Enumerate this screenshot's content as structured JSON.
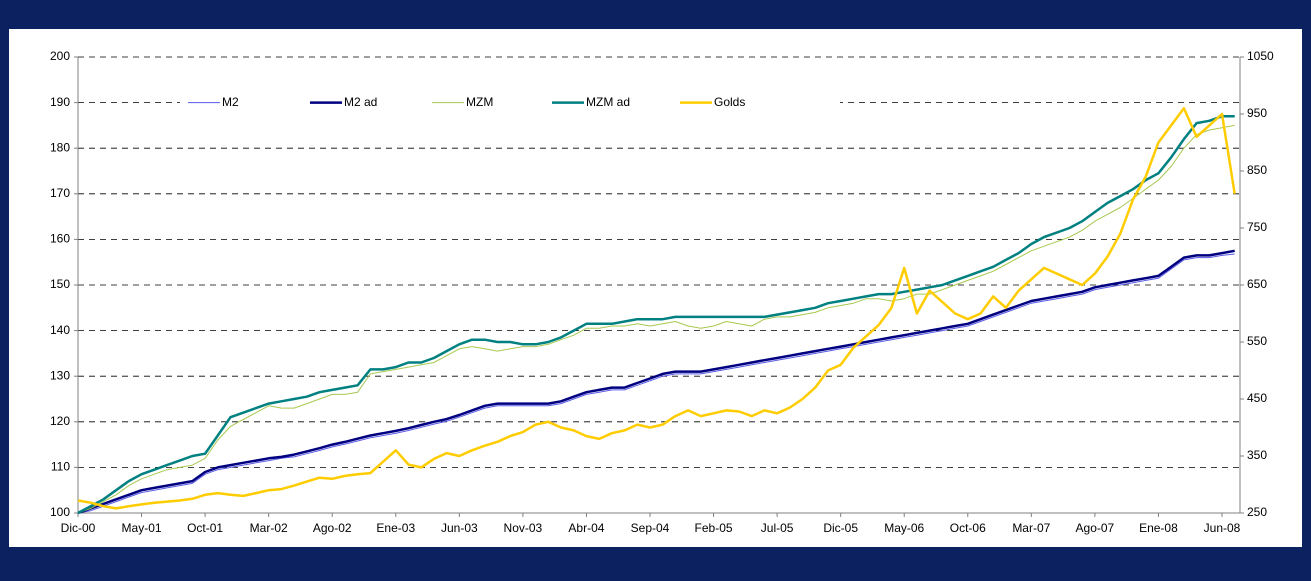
{
  "chart_data": {
    "type": "line",
    "categories": [
      "Dic-00",
      null,
      null,
      null,
      null,
      "May-01",
      null,
      null,
      null,
      null,
      "Oct-01",
      null,
      null,
      null,
      null,
      "Mar-02",
      null,
      null,
      null,
      null,
      "Ago-02",
      null,
      null,
      null,
      null,
      "Ene-03",
      null,
      null,
      null,
      null,
      "Jun-03",
      null,
      null,
      null,
      null,
      "Nov-03",
      null,
      null,
      null,
      null,
      "Abr-04",
      null,
      null,
      null,
      null,
      "Sep-04",
      null,
      null,
      null,
      null,
      "Feb-05",
      null,
      null,
      null,
      null,
      "Jul-05",
      null,
      null,
      null,
      null,
      "Dic-05",
      null,
      null,
      null,
      null,
      "May-06",
      null,
      null,
      null,
      null,
      "Oct-06",
      null,
      null,
      null,
      null,
      "Mar-07",
      null,
      null,
      null,
      null,
      "Ago-07",
      null,
      null,
      null,
      null,
      "Ene-08",
      null,
      null,
      null,
      null,
      "Jun-08",
      null
    ],
    "ylim": [
      100,
      200
    ],
    "yticks": [
      100,
      110,
      120,
      130,
      140,
      150,
      160,
      170,
      180,
      190,
      200
    ],
    "y2lim": [
      250,
      1050
    ],
    "y2ticks": [
      250,
      350,
      450,
      550,
      650,
      750,
      850,
      950,
      1050
    ],
    "grid": true,
    "legend": "top",
    "series": [
      {
        "name": "M2",
        "color": "#5a5ae6",
        "linewidth": 1,
        "values": [
          100,
          100.5,
          101.5,
          102.5,
          103.5,
          104.5,
          105,
          105.5,
          106,
          106.5,
          108.5,
          109.5,
          110,
          110.5,
          111,
          111.5,
          112,
          112.3,
          113,
          113.7,
          114.5,
          115.1,
          115.8,
          116.5,
          117,
          117.5,
          118.1,
          118.8,
          119.5,
          120.1,
          121,
          122,
          123,
          123.5,
          123.5,
          123.5,
          123.5,
          123.5,
          124,
          125,
          126,
          126.5,
          127,
          127,
          128,
          129,
          130,
          130.5,
          130.5,
          130.5,
          131,
          131.5,
          132,
          132.5,
          133,
          133.5,
          134,
          134.5,
          135,
          135.5,
          136,
          136.5,
          137,
          137.5,
          138,
          138.5,
          139,
          139.5,
          140,
          140.5,
          141,
          142,
          143,
          144,
          145,
          146,
          146.5,
          147,
          147.5,
          148,
          149,
          149.5,
          150,
          150.5,
          151,
          151.5,
          153.5,
          155.5,
          156,
          156,
          156.5,
          156.8
        ]
      },
      {
        "name": "M2 ad",
        "color": "#000080",
        "linewidth": 2.5,
        "values": [
          100,
          101,
          102,
          103,
          104,
          105,
          105.5,
          106,
          106.5,
          107,
          109,
          110,
          110.5,
          111,
          111.5,
          112,
          112.3,
          112.8,
          113.5,
          114.2,
          115,
          115.6,
          116.3,
          117,
          117.5,
          118,
          118.6,
          119.3,
          120,
          120.6,
          121.5,
          122.5,
          123.5,
          124,
          124,
          124,
          124,
          124,
          124.5,
          125.5,
          126.5,
          127,
          127.5,
          127.5,
          128.5,
          129.5,
          130.5,
          131,
          131,
          131,
          131.5,
          132,
          132.5,
          133,
          133.5,
          134,
          134.5,
          135,
          135.5,
          136,
          136.5,
          137,
          137.5,
          138,
          138.5,
          139,
          139.5,
          140,
          140.5,
          141,
          141.5,
          142.5,
          143.5,
          144.5,
          145.5,
          146.5,
          147,
          147.5,
          148,
          148.5,
          149.5,
          150,
          150.5,
          151,
          151.5,
          152,
          154,
          156,
          156.5,
          156.5,
          157,
          157.5
        ]
      },
      {
        "name": "MZM",
        "color": "#a8c850",
        "linewidth": 1,
        "values": [
          100,
          101,
          102.5,
          104,
          106,
          107.5,
          108.5,
          109.5,
          110,
          110.5,
          112,
          116,
          119,
          120.5,
          122,
          123.5,
          123,
          123,
          124,
          125,
          126,
          126,
          126.5,
          130.5,
          131,
          131.5,
          132,
          132.5,
          133,
          134.5,
          136,
          136.5,
          136,
          135.5,
          136,
          136.5,
          136.5,
          137,
          138,
          139,
          140.5,
          140.5,
          141,
          141,
          141.5,
          141,
          141.5,
          142,
          141,
          140.5,
          141,
          142,
          141.5,
          141,
          142.5,
          143,
          143,
          143.5,
          144,
          145,
          145.5,
          146,
          147,
          147,
          146.5,
          147,
          148,
          148,
          149,
          150,
          151,
          152,
          153,
          154.5,
          156,
          157.5,
          158.5,
          159.5,
          160.5,
          162,
          164,
          165.5,
          167,
          169,
          171,
          173,
          176,
          180,
          183,
          184,
          184.5,
          185
        ]
      },
      {
        "name": "MZM ad",
        "color": "#008080",
        "linewidth": 2.5,
        "values": [
          100,
          101.5,
          103,
          105,
          107,
          108.5,
          109.5,
          110.5,
          111.5,
          112.5,
          113,
          117,
          121,
          122,
          123,
          124,
          124.5,
          125,
          125.5,
          126.5,
          127,
          127.5,
          128,
          131.5,
          131.5,
          132,
          133,
          133,
          134,
          135.5,
          137,
          138,
          138,
          137.5,
          137.5,
          137,
          137,
          137.5,
          138.5,
          140,
          141.5,
          141.5,
          141.5,
          142,
          142.5,
          142.5,
          142.5,
          143,
          143,
          143,
          143,
          143,
          143,
          143,
          143,
          143.5,
          144,
          144.5,
          145,
          146,
          146.5,
          147,
          147.5,
          148,
          148,
          148.5,
          149,
          149.5,
          150,
          151,
          152,
          153,
          154,
          155.5,
          157,
          159,
          160.5,
          161.5,
          162.5,
          164,
          166,
          168,
          169.5,
          171,
          173,
          174.5,
          178,
          182,
          185.5,
          186,
          187,
          187
        ]
      },
      {
        "name": "Golds",
        "color": "#ffcc00",
        "linewidth": 2.5,
        "axis": "y2",
        "values": [
          272,
          268,
          262,
          258,
          262,
          265,
          268,
          270,
          272,
          275,
          282,
          285,
          282,
          280,
          285,
          290,
          292,
          298,
          305,
          312,
          310,
          315,
          318,
          320,
          340,
          360,
          335,
          330,
          345,
          355,
          350,
          360,
          368,
          375,
          385,
          392,
          405,
          410,
          400,
          395,
          385,
          380,
          390,
          395,
          405,
          400,
          405,
          420,
          430,
          420,
          425,
          430,
          428,
          420,
          430,
          425,
          435,
          450,
          470,
          500,
          510,
          540,
          560,
          580,
          610,
          680,
          600,
          640,
          620,
          600,
          590,
          600,
          630,
          610,
          640,
          660,
          680,
          670,
          660,
          650,
          670,
          700,
          740,
          800,
          840,
          900,
          930,
          960,
          910,
          930,
          950,
          810
        ]
      }
    ]
  }
}
